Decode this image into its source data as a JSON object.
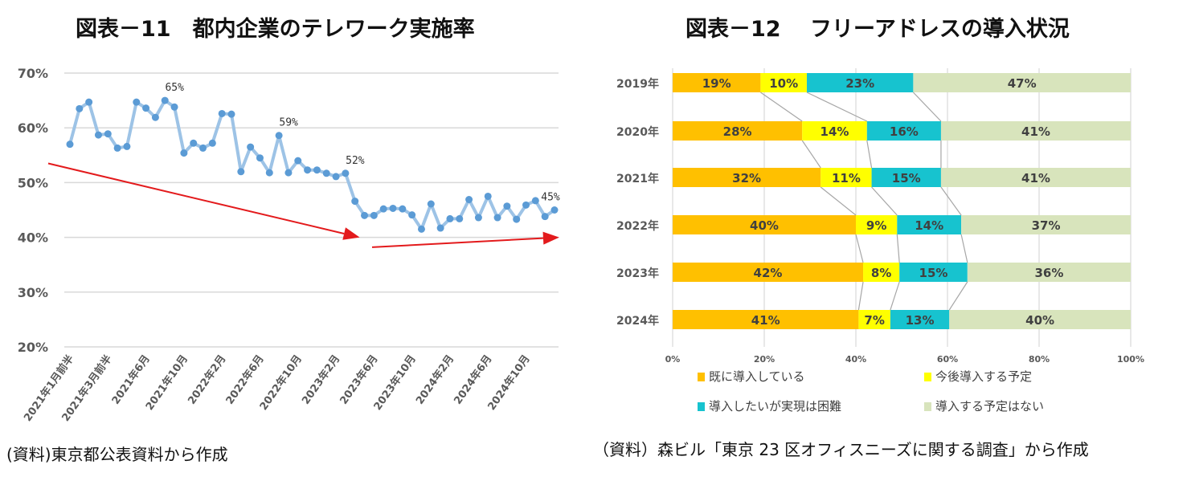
{
  "chart_data": [
    {
      "type": "line",
      "title": "図表－11　都内企業のテレワーク実施率",
      "ylim": [
        20,
        70
      ],
      "y_ticks": [
        "70%",
        "60%",
        "50%",
        "40%",
        "30%",
        "20%"
      ],
      "y_tick_values": [
        70,
        60,
        50,
        40,
        30,
        20
      ],
      "x_tick_labels": [
        "2021年1月前半",
        "2021年3月前半",
        "2021年6月",
        "2021年10月",
        "2022年2月",
        "2022年6月",
        "2022年10月",
        "2023年2月",
        "2023年6月",
        "2023年10月",
        "2024年2月",
        "2024年6月",
        "2024年10月"
      ],
      "x_tick_every": 4,
      "values": [
        57.0,
        63.5,
        64.7,
        58.7,
        58.9,
        56.3,
        56.6,
        64.7,
        63.6,
        61.9,
        65.0,
        63.8,
        55.4,
        57.2,
        56.3,
        57.2,
        62.6,
        62.5,
        52.0,
        56.5,
        54.5,
        51.8,
        58.6,
        51.8,
        54.0,
        52.3,
        52.3,
        51.7,
        51.1,
        51.7,
        46.6,
        44.0,
        44.0,
        45.2,
        45.3,
        45.2,
        44.1,
        41.5,
        46.1,
        41.7,
        43.4,
        43.4,
        46.9,
        43.6,
        47.5,
        43.6,
        45.7,
        43.3,
        45.9,
        46.7,
        43.8,
        45.0
      ],
      "annotations": [
        {
          "index": 10,
          "text": "65%"
        },
        {
          "index": 22,
          "text": "59%"
        },
        {
          "index": 29,
          "text": "52%"
        },
        {
          "index": 51,
          "text": "45%"
        }
      ],
      "trend_arrows": [
        {
          "from": [
            0,
            53.5
          ],
          "to": [
            30.5,
            40
          ]
        },
        {
          "from": [
            31.8,
            38.2
          ],
          "to": [
            51.5,
            40
          ]
        }
      ],
      "grid": "horizontal",
      "colors": {
        "line": "#9DC3E6",
        "marker": "#5B9BD5",
        "arrow": "#E31A1C",
        "grid": "#D9D9D9"
      }
    },
    {
      "type": "bar",
      "orientation": "horizontal-stacked-100",
      "title": "図表－12　 フリーアドレスの導入状況",
      "categories": [
        "2019年",
        "2020年",
        "2021年",
        "2022年",
        "2023年",
        "2024年"
      ],
      "series": [
        {
          "name": "既に導入している",
          "values": [
            19,
            28,
            32,
            40,
            42,
            41
          ],
          "color": "#FFC000"
        },
        {
          "name": "今後導入する予定",
          "values": [
            10,
            14,
            11,
            9,
            8,
            7
          ],
          "color": "#FFFF00"
        },
        {
          "name": "導入したいが実現は困難",
          "values": [
            23,
            16,
            15,
            14,
            15,
            13
          ],
          "color": "#17C3CF"
        },
        {
          "name": "導入する予定はない",
          "values": [
            47,
            41,
            41,
            37,
            36,
            40
          ],
          "color": "#D8E4BC"
        }
      ],
      "x_ticks": [
        "0%",
        "20%",
        "40%",
        "60%",
        "80%",
        "100%"
      ],
      "xlim": [
        0,
        100
      ],
      "grid": "vertical",
      "legend": "bottom",
      "series_lines": true
    }
  ],
  "notes": {
    "left": "(資料)東京都公表資料から作成",
    "right": "（資料）森ビル「東京 23 区オフィスニーズに関する調査」から作成"
  }
}
